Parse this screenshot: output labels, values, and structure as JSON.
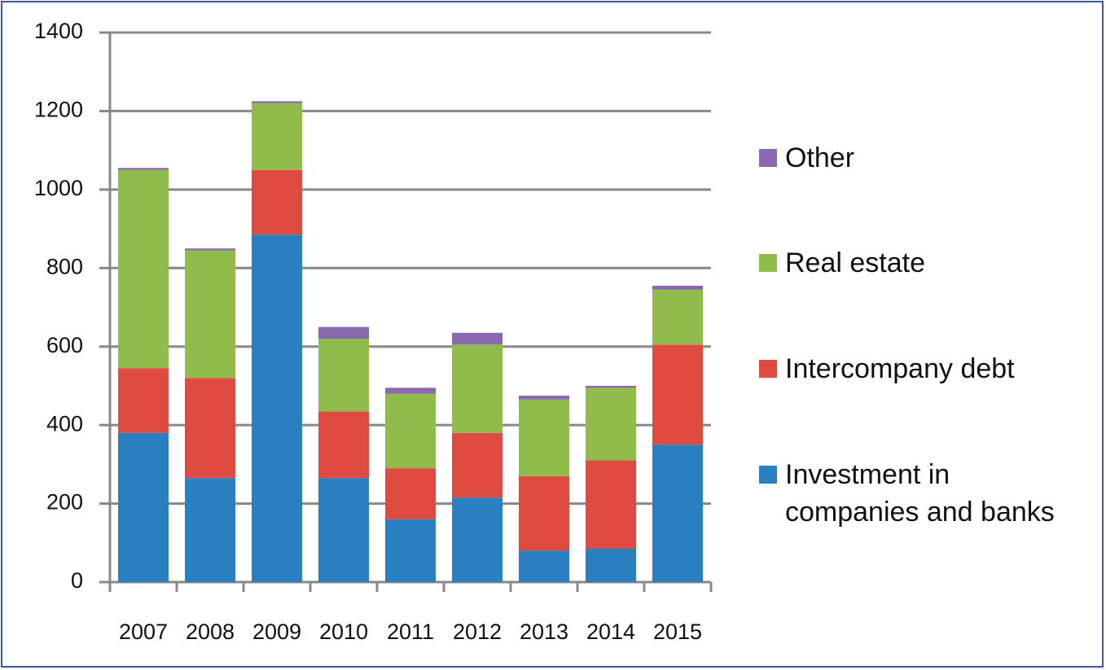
{
  "chart_data": {
    "type": "bar",
    "stacked": true,
    "categories": [
      "2007",
      "2008",
      "2009",
      "2010",
      "2011",
      "2012",
      "2013",
      "2014",
      "2015"
    ],
    "series": [
      {
        "name": "Investment in companies and banks",
        "color": "#2a7fc0",
        "values": [
          380,
          265,
          885,
          265,
          160,
          215,
          80,
          85,
          350
        ]
      },
      {
        "name": "Intercompany debt",
        "color": "#e04b41",
        "values": [
          165,
          255,
          165,
          170,
          130,
          165,
          190,
          225,
          255
        ]
      },
      {
        "name": "Real estate",
        "color": "#8fbc4a",
        "values": [
          505,
          325,
          170,
          185,
          190,
          225,
          195,
          185,
          140
        ]
      },
      {
        "name": "Other",
        "color": "#8b69b0",
        "values": [
          5,
          5,
          5,
          30,
          15,
          30,
          10,
          5,
          10
        ]
      }
    ],
    "ylim": [
      0,
      1400
    ],
    "yticks": [
      0,
      200,
      400,
      600,
      800,
      1000,
      1200,
      1400
    ],
    "grid": true,
    "legend": "right"
  }
}
